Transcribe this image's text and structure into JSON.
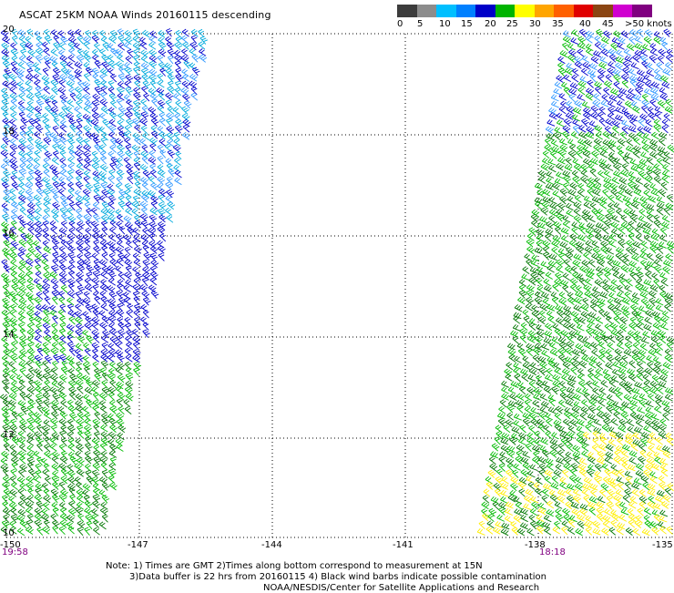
{
  "title": "ASCAT 25KM NOAA Winds 20160115 descending",
  "legend": {
    "unit": "knots",
    "labels": [
      "0",
      "5",
      "10",
      "15",
      "20",
      "25",
      "30",
      "35",
      "40",
      "45",
      ">50 knots"
    ],
    "colors": [
      "#3c3c3c",
      "#8c8c8c",
      "#00bfff",
      "#0080ff",
      "#0000c8",
      "#00b400",
      "#ffff00",
      "#ffa500",
      "#ff6000",
      "#e00000",
      "#8b4513",
      "#d000d0",
      "#800080"
    ]
  },
  "axes": {
    "lat_labels": [
      "20",
      "18",
      "16",
      "14",
      "12",
      "10"
    ],
    "lon_labels": [
      "-150",
      "-147",
      "-144",
      "-141",
      "-138",
      "-135"
    ],
    "lon_range": [
      -150,
      -135
    ],
    "lat_range": [
      10,
      20
    ]
  },
  "times": {
    "left": "19:58",
    "right": "18:18"
  },
  "notes": {
    "line1": "Note: 1) Times are GMT 2)Times along bottom correspond to measurement at 15N",
    "line2": "3)Data buffer is 22 hrs from 20160115 4) Black wind barbs indicate possible contamination",
    "line3": "NOAA/NESDIS/Center for Satellite Applications and Research"
  },
  "wind_colors": {
    "blue": "#0000cc",
    "cyan": "#00aadd",
    "lightblue": "#3399ff",
    "green": "#00bb00",
    "darkgreen": "#007700",
    "yellow": "#ffee00"
  }
}
